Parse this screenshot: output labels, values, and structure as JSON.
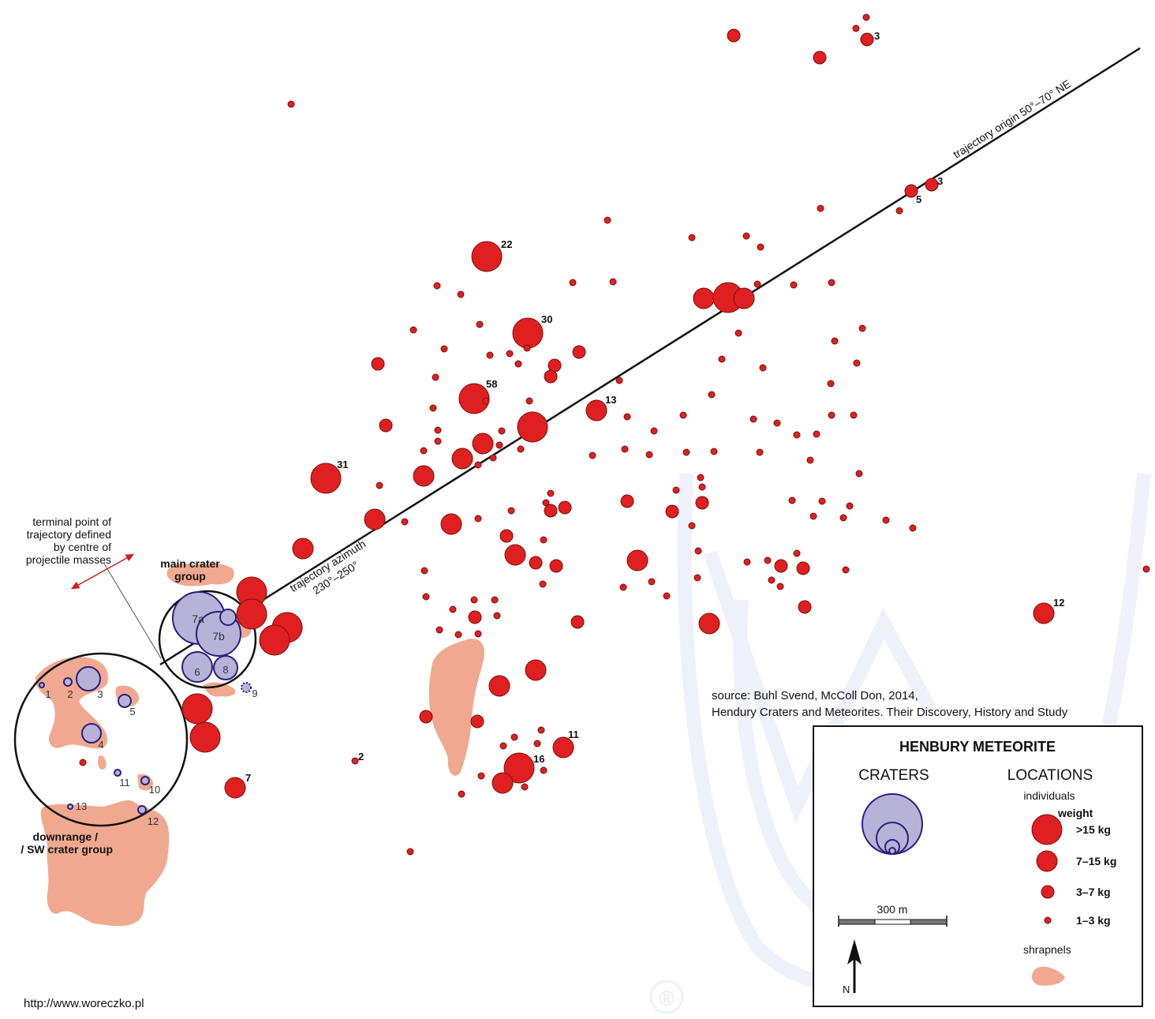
{
  "map": {
    "trajectory_origin_label": "trajectory origin 50°–70° NE",
    "trajectory_azimuth_label": [
      "trajectory azimuth",
      "230°–250°"
    ],
    "terminal_point_label": [
      "terminal point of",
      "trajectory defined",
      "by centre of",
      "projectile masses"
    ],
    "main_group_label": [
      "main crater",
      "group"
    ],
    "downrange_label": [
      "downrange /",
      "/ SW crater group"
    ],
    "source_lines": [
      "source: Buhl Svend, McColl Don, 2014,",
      "Hendury Craters and Meteorites. Their Discovery, History and Study"
    ],
    "url": "http://www.woreczko.pl",
    "watermark_symbol": "®",
    "crater_labels": [
      "7a",
      "7b",
      "6",
      "8",
      "9",
      "1",
      "2",
      "3",
      "5",
      "4",
      "11",
      "10",
      "13",
      "12"
    ],
    "meteorite_weight_labels": [
      "3",
      "3",
      "5",
      "22",
      "30",
      "58",
      "13",
      "31",
      "12",
      "2",
      "7",
      "11",
      "16"
    ]
  },
  "legend": {
    "title": "HENBURY METEORITE",
    "craters_heading": "CRATERS",
    "locations_heading": "LOCATIONS",
    "individuals_label": "individuals",
    "weight_label": "weight",
    "classes": [
      ">15 kg",
      "7–15 kg",
      "3–7 kg",
      "1–3 kg"
    ],
    "scale_label": "300 m",
    "north_label": "N",
    "shrapnels_label": "shrapnels"
  },
  "colors": {
    "meteorite_fill": "#e02020",
    "meteorite_stroke": "#7a0d0d",
    "crater_fill": "#b7b3d8",
    "crater_stroke": "#2a1f7a",
    "shrapnel_fill": "#f0a990",
    "line": "#111111"
  }
}
